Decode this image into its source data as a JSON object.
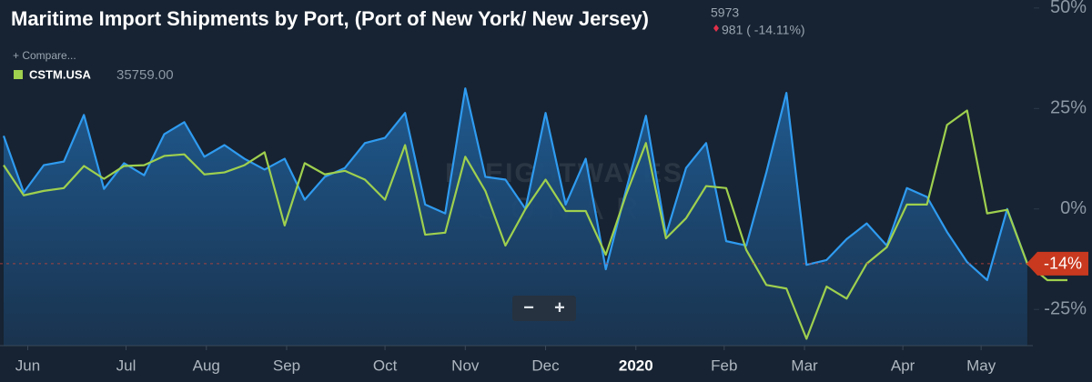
{
  "chart_data": {
    "type": "line",
    "title": "Maritime Import Shipments by Port, (Port of New York/ New Jersey)",
    "header_value": "5973",
    "header_change": "981 ( -14.11%)",
    "compare_label": "+ Compare...",
    "legend_value": "35759.00",
    "legend_position": "top-left",
    "watermark": [
      "FREIGHTWAVES",
      "SONAR"
    ],
    "zoom_controls": [
      "−",
      "+"
    ],
    "x": [
      0,
      1,
      2,
      3,
      4,
      5,
      6,
      7,
      8,
      9,
      10,
      11,
      12,
      13,
      14,
      15,
      16,
      17,
      18,
      19,
      20,
      21,
      22,
      23,
      24,
      25,
      26,
      27,
      28,
      29,
      30,
      31,
      32,
      33,
      34,
      35,
      36,
      37,
      38,
      39,
      40,
      41,
      42,
      43,
      44,
      45,
      46,
      47,
      48,
      49,
      50,
      51,
      52,
      53
    ],
    "xlim": [
      0,
      53
    ],
    "xticks": [
      {
        "value": 1.2,
        "label": "Jun"
      },
      {
        "value": 6.1,
        "label": "Jul"
      },
      {
        "value": 10.1,
        "label": "Aug"
      },
      {
        "value": 14.1,
        "label": "Sep"
      },
      {
        "value": 19.0,
        "label": "Oct"
      },
      {
        "value": 23.0,
        "label": "Nov"
      },
      {
        "value": 27.0,
        "label": "Dec"
      },
      {
        "value": 31.5,
        "label": "2020"
      },
      {
        "value": 35.9,
        "label": "Feb"
      },
      {
        "value": 39.9,
        "label": "Mar"
      },
      {
        "value": 44.8,
        "label": "Apr"
      },
      {
        "value": 48.7,
        "label": "May"
      }
    ],
    "ylim": [
      -34,
      52
    ],
    "yticks": [
      {
        "value": 50,
        "label": "50%"
      },
      {
        "value": 25,
        "label": "25%"
      },
      {
        "value": 0,
        "label": "0%"
      },
      {
        "value": -25,
        "label": "-25%"
      }
    ],
    "reference_line": {
      "value": -13.6,
      "label": "-14%"
    },
    "series": [
      {
        "color": "#2f9bf0",
        "area": true,
        "values": [
          18.2,
          4.1,
          10.9,
          11.8,
          23.4,
          5.0,
          11.4,
          8.4,
          18.6,
          21.6,
          13.0,
          15.9,
          12.5,
          9.8,
          12.5,
          2.3,
          8.0,
          10.2,
          16.4,
          17.7,
          23.9,
          1.1,
          -1.1,
          30.0,
          8.0,
          7.3,
          0,
          23.9,
          1.1,
          12.5,
          -15.0,
          4.5,
          23.2,
          -6.4,
          10.2,
          16.4,
          -8.0,
          -9.1,
          9.1,
          28.9,
          -13.9,
          -12.7,
          -7.5,
          -3.6,
          -9.1,
          5.2,
          3.0,
          -5.7,
          -13.2,
          -17.7,
          0,
          -13.6,
          null,
          null
        ]
      },
      {
        "name": "CSTM.USA",
        "color": "#9fd04e",
        "area": false,
        "values": [
          10.9,
          3.4,
          4.5,
          5.2,
          10.7,
          7.5,
          10.7,
          10.9,
          13.2,
          13.6,
          8.6,
          9.1,
          10.9,
          14.1,
          -4.1,
          11.4,
          8.6,
          9.5,
          7.3,
          2.3,
          15.9,
          -6.4,
          -5.9,
          13.0,
          4.5,
          -9.1,
          0,
          7.3,
          -0.5,
          -0.5,
          -11.4,
          3.4,
          16.4,
          -7.3,
          -2.3,
          5.7,
          5.2,
          -10.2,
          -18.9,
          -19.8,
          -32.3,
          -19.3,
          -22.3,
          -13.6,
          -9.5,
          1.1,
          1.1,
          20.9,
          24.5,
          -1.1,
          -0.2,
          -13.6,
          -17.7,
          -17.7
        ]
      }
    ]
  }
}
